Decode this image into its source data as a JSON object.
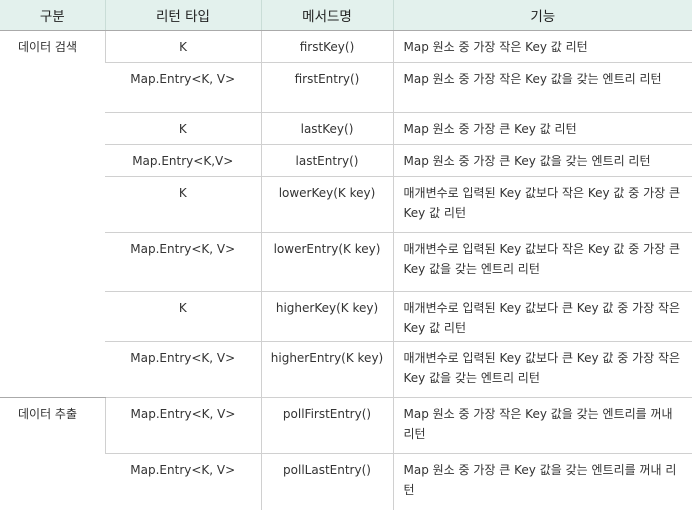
{
  "headers": [
    "구분",
    "리턴 타입",
    "메서드명",
    "기능"
  ],
  "groups": [
    {
      "category": "데이터 검색"
    },
    {
      "category": "데이터 추출"
    }
  ],
  "rows": [
    {
      "type": "K",
      "method": "firstKey()",
      "desc": "Map 원소 중 가장 작은 Key 값 리턴"
    },
    {
      "type": "Map.Entry<K, V>",
      "method": "firstEntry()",
      "desc": "Map 원소 중 가장 작은 Key 값을 갖는 엔트리 리턴"
    },
    {
      "type": "K",
      "method": "lastKey()",
      "desc": "Map 원소 중 가장 큰 Key 값 리턴"
    },
    {
      "type": "Map.Entry<K,V>",
      "method": "lastEntry()",
      "desc": "Map 원소 중 가장 큰 Key 값을 갖는 엔트리 리턴"
    },
    {
      "type": "K",
      "method": "lowerKey(K key)",
      "desc": "매개변수로 입력된 Key 값보다 작은 Key 값 중 가장 큰 Key 값 리턴"
    },
    {
      "type": "Map.Entry<K, V>",
      "method": "lowerEntry(K key)",
      "desc": "매개변수로 입력된 Key 값보다 작은 Key 값 중 가장 큰 Key 값을 갖는 엔트리 리턴"
    },
    {
      "type": "K",
      "method": "higherKey(K key)",
      "desc": "매개변수로 입력된 Key 값보다 큰 Key 값 중 가장 작은 Key 값 리턴"
    },
    {
      "type": "Map.Entry<K, V>",
      "method": "higherEntry(K key)",
      "desc": "매개변수로 입력된 Key 값보다 큰 Key 값 중 가장 작은 Key 값을 갖는 엔트리 리턴"
    },
    {
      "type": "Map.Entry<K, V>",
      "method": "pollFirstEntry()",
      "desc": "Map 원소 중 가장 작은 Key 값을 갖는 엔트리를 꺼내 리턴"
    },
    {
      "type": "Map.Entry<K, V>",
      "method": "pollLastEntry()",
      "desc": "Map 원소 중 가장 큰 Key 값을 갖는 엔트리를 꺼내 리턴"
    }
  ]
}
